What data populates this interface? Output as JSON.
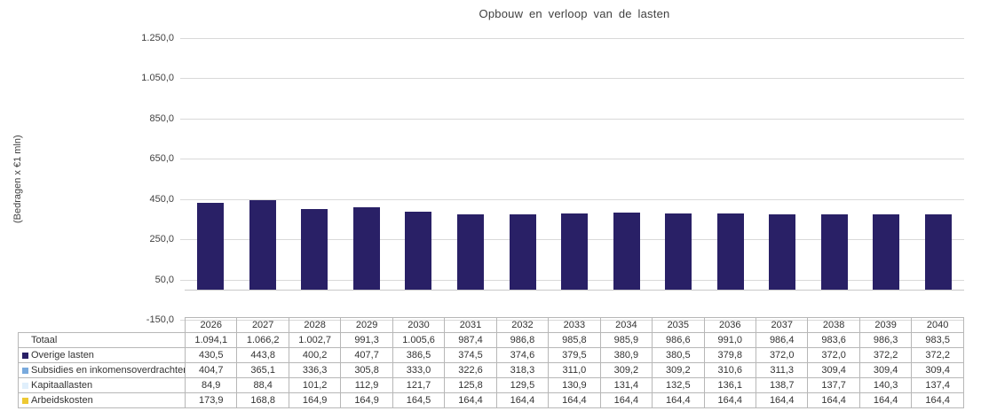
{
  "title": "Opbouw en verloop van de lasten",
  "y_axis": {
    "label": "(Bedragen x €1 mln)",
    "min": -150,
    "max": 1250,
    "ticks": [
      {
        "value": 1250,
        "label": "1.250,0"
      },
      {
        "value": 1050,
        "label": "1.050,0"
      },
      {
        "value": 850,
        "label": "850,0"
      },
      {
        "value": 650,
        "label": "650,0"
      },
      {
        "value": 450,
        "label": "450,0"
      },
      {
        "value": 250,
        "label": "250,0"
      },
      {
        "value": 50,
        "label": "50,0"
      },
      {
        "value": -150,
        "label": "-150,0"
      }
    ]
  },
  "chart_data": {
    "type": "bar",
    "stacked": true,
    "title": "Opbouw en verloop van de lasten",
    "xlabel": "",
    "ylabel": "(Bedragen x €1 mln)",
    "ylim": [
      -150,
      1250
    ],
    "ytick_step": 200,
    "grid": true,
    "legend_position": "table-left",
    "categories": [
      "2026",
      "2027",
      "2028",
      "2029",
      "2030",
      "2031",
      "2032",
      "2033",
      "2034",
      "2035",
      "2036",
      "2037",
      "2038",
      "2039",
      "2040"
    ],
    "series": [
      {
        "name": "Overige lasten",
        "color": "#292066",
        "values": [
          430.5,
          443.8,
          400.2,
          407.7,
          386.5,
          374.5,
          374.6,
          379.5,
          380.9,
          380.5,
          379.8,
          372.0,
          372.0,
          372.2,
          372.2
        ]
      },
      {
        "name": "Subsidies en inkomensoverdrachten",
        "color": "#79aadd",
        "values": [
          404.7,
          365.1,
          336.3,
          305.8,
          333.0,
          322.6,
          318.3,
          311.0,
          309.2,
          309.2,
          310.6,
          311.3,
          309.4,
          309.4,
          309.4
        ]
      },
      {
        "name": "Kapitaallasten",
        "color": "#e0effc",
        "values": [
          84.9,
          88.4,
          101.2,
          112.9,
          121.7,
          125.8,
          129.5,
          130.9,
          131.4,
          132.5,
          136.1,
          138.7,
          137.7,
          140.3,
          137.4
        ]
      },
      {
        "name": "Arbeidskosten",
        "color": "#eec933",
        "values": [
          173.9,
          168.8,
          164.9,
          164.9,
          164.5,
          164.4,
          164.4,
          164.4,
          164.4,
          164.4,
          164.4,
          164.4,
          164.4,
          164.4,
          164.4
        ]
      }
    ],
    "totals": [
      1094.1,
      1066.2,
      1002.7,
      991.3,
      1005.6,
      987.4,
      986.8,
      985.8,
      985.9,
      986.6,
      991.0,
      986.4,
      983.6,
      986.3,
      983.5
    ]
  },
  "table": {
    "corner_label": "",
    "header": [
      "2026",
      "2027",
      "2028",
      "2029",
      "2030",
      "2031",
      "2032",
      "2033",
      "2034",
      "2035",
      "2036",
      "2037",
      "2038",
      "2039",
      "2040"
    ],
    "rows": [
      {
        "label": "Totaal",
        "marker": null,
        "values": [
          "1.094,1",
          "1.066,2",
          "1.002,7",
          "991,3",
          "1.005,6",
          "987,4",
          "986,8",
          "985,8",
          "985,9",
          "986,6",
          "991,0",
          "986,4",
          "983,6",
          "986,3",
          "983,5"
        ]
      },
      {
        "label": "Overige lasten",
        "marker": "#292066",
        "values": [
          "430,5",
          "443,8",
          "400,2",
          "407,7",
          "386,5",
          "374,5",
          "374,6",
          "379,5",
          "380,9",
          "380,5",
          "379,8",
          "372,0",
          "372,0",
          "372,2",
          "372,2"
        ]
      },
      {
        "label": "Subsidies en inkomensoverdrachten",
        "marker": "#79aadd",
        "values": [
          "404,7",
          "365,1",
          "336,3",
          "305,8",
          "333,0",
          "322,6",
          "318,3",
          "311,0",
          "309,2",
          "309,2",
          "310,6",
          "311,3",
          "309,4",
          "309,4",
          "309,4"
        ]
      },
      {
        "label": "Kapitaallasten",
        "marker": "#e0effc",
        "values": [
          "84,9",
          "88,4",
          "101,2",
          "112,9",
          "121,7",
          "125,8",
          "129,5",
          "130,9",
          "131,4",
          "132,5",
          "136,1",
          "138,7",
          "137,7",
          "140,3",
          "137,4"
        ]
      },
      {
        "label": "Arbeidskosten",
        "marker": "#eec933",
        "values": [
          "173,9",
          "168,8",
          "164,9",
          "164,9",
          "164,5",
          "164,4",
          "164,4",
          "164,4",
          "164,4",
          "164,4",
          "164,4",
          "164,4",
          "164,4",
          "164,4",
          "164,4"
        ]
      }
    ]
  },
  "colors": {
    "gridline": "#d9d9d9",
    "axis_line": "#c8c8c8",
    "table_border": "#b7b7b7",
    "text": "#3a3a3a"
  }
}
